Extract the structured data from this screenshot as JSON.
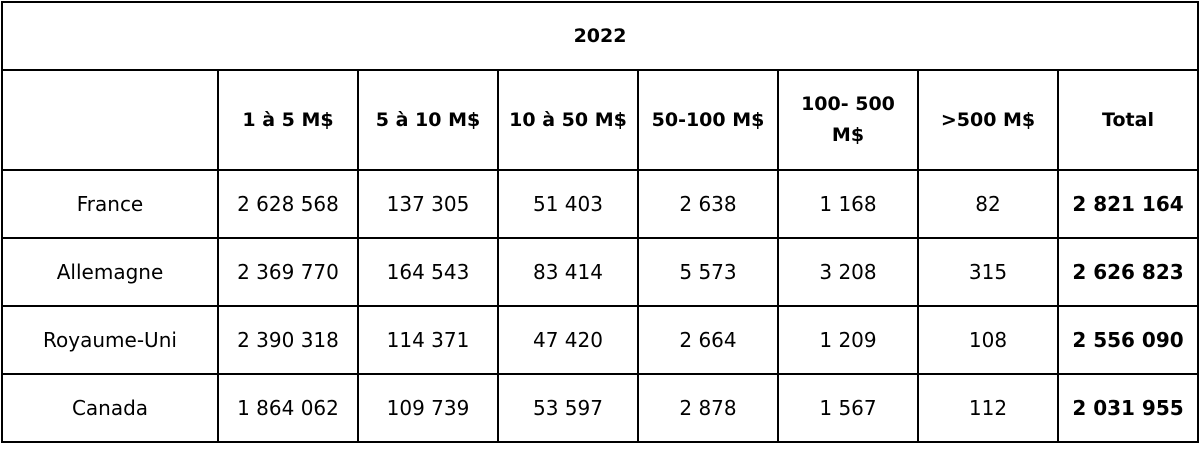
{
  "chart_data": {
    "type": "table",
    "title": "2022",
    "columns": [
      "",
      "1 à 5 M$",
      "5 à 10 M$",
      "10 à 50 M$",
      "50-100 M$",
      "100- 500 M$",
      ">500 M$",
      "Total"
    ],
    "rows": [
      [
        "France",
        "2 628 568",
        "137 305",
        "51 403",
        "2 638",
        "1 168",
        "82",
        "2 821 164"
      ],
      [
        "Allemagne",
        "2 369 770",
        "164 543",
        "83 414",
        "5 573",
        "3 208",
        "315",
        "2 626 823"
      ],
      [
        "Royaume-Uni",
        "2 390 318",
        "114 371",
        "47 420",
        "2 664",
        "1 209",
        "108",
        "2 556 090"
      ],
      [
        "Canada",
        "1 864 062",
        "109 739",
        "53 597",
        "2 878",
        "1 567",
        "112",
        "2 031 955"
      ]
    ]
  }
}
